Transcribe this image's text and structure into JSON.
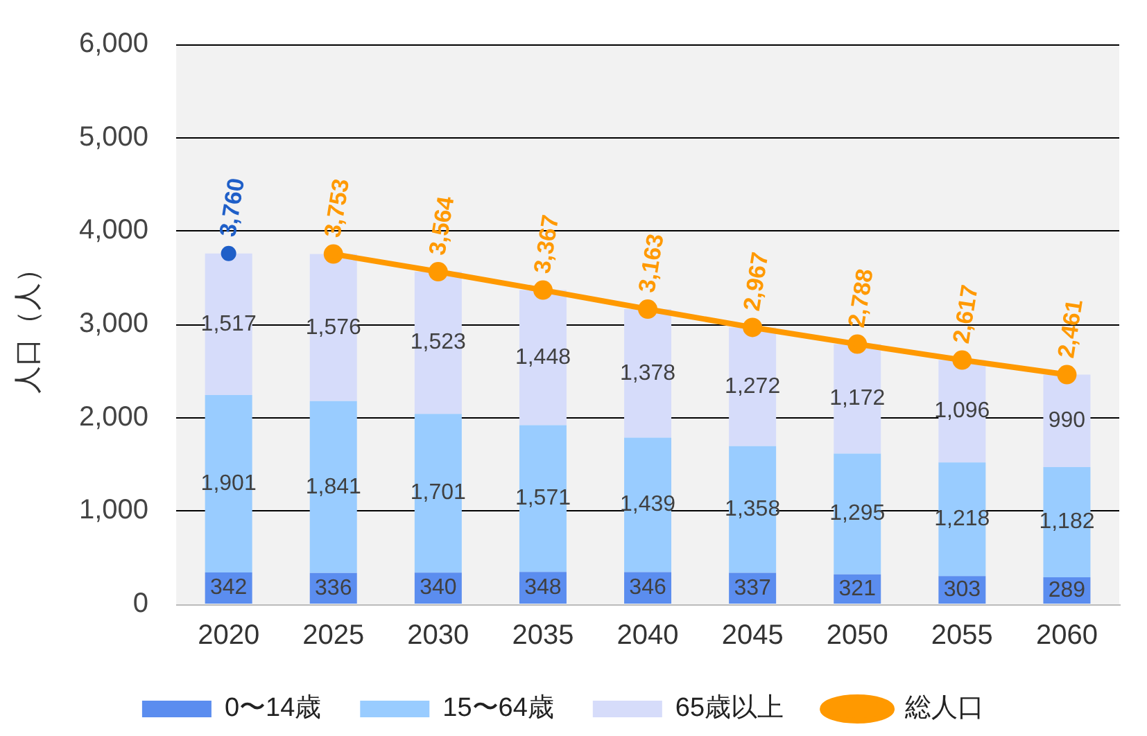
{
  "chart_data": {
    "type": "bar",
    "stacked": true,
    "ylabel": "人口（人）",
    "categories": [
      "2020",
      "2025",
      "2030",
      "2035",
      "2040",
      "2045",
      "2050",
      "2055",
      "2060"
    ],
    "ylim": [
      0,
      6000
    ],
    "yticks": [
      {
        "value": 0,
        "label": "0"
      },
      {
        "value": 1000,
        "label": "1,000"
      },
      {
        "value": 2000,
        "label": "2,000"
      },
      {
        "value": 3000,
        "label": "3,000"
      },
      {
        "value": 4000,
        "label": "4,000"
      },
      {
        "value": 5000,
        "label": "5,000"
      },
      {
        "value": 6000,
        "label": "6,000"
      }
    ],
    "grid": "y",
    "legend": "bottom",
    "marker": "circle",
    "series": [
      {
        "name": "0〜14歳",
        "color": "#5b8def",
        "values": [
          342,
          336,
          340,
          348,
          346,
          337,
          321,
          303,
          289
        ],
        "value_labels": [
          "342",
          "336",
          "340",
          "348",
          "346",
          "337",
          "321",
          "303",
          "289"
        ]
      },
      {
        "name": "15〜64歳",
        "color": "#99ccff",
        "values": [
          1901,
          1841,
          1701,
          1571,
          1439,
          1358,
          1295,
          1218,
          1182
        ],
        "value_labels": [
          "1,901",
          "1,841",
          "1,701",
          "1,571",
          "1,439",
          "1,358",
          "1,295",
          "1,218",
          "1,182"
        ]
      },
      {
        "name": "65歳以上",
        "color": "#d6dcfa",
        "values": [
          1517,
          1576,
          1523,
          1448,
          1378,
          1272,
          1172,
          1096,
          990
        ],
        "value_labels": [
          "1,517",
          "1,576",
          "1,523",
          "1,448",
          "1,378",
          "1,272",
          "1,172",
          "1,096",
          "990"
        ]
      },
      {
        "name": "総人口",
        "type": "line",
        "color": "#ff9900",
        "values": [
          null,
          3753,
          3564,
          3367,
          3163,
          2967,
          2788,
          2617,
          2461
        ],
        "value_labels": [
          null,
          "3,753",
          "3,564",
          "3,367",
          "3,163",
          "2,967",
          "2,788",
          "2,617",
          "2,461"
        ]
      },
      {
        "type": "scatter",
        "color": "#1f5fc8",
        "values": [
          3760,
          null,
          null,
          null,
          null,
          null,
          null,
          null,
          null
        ],
        "value_labels": [
          "3,760",
          null,
          null,
          null,
          null,
          null,
          null,
          null,
          null
        ]
      }
    ]
  }
}
